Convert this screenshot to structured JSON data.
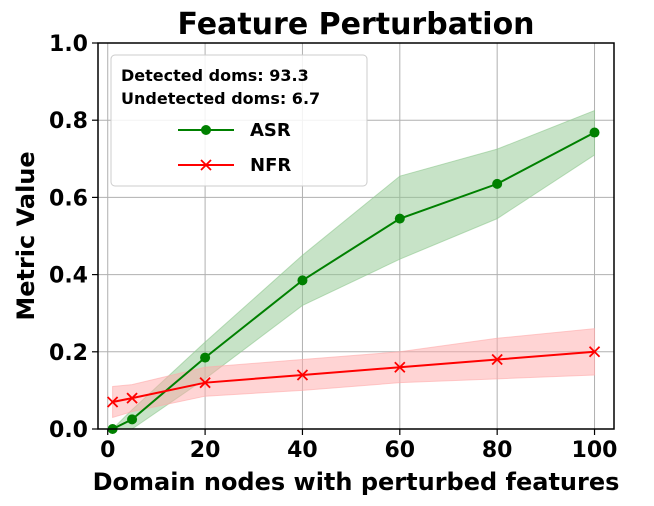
{
  "chart_data": {
    "type": "line",
    "title": "Feature Perturbation",
    "xlabel": "Domain nodes with perturbed features",
    "ylabel": "Metric Value",
    "xlim": [
      -2,
      104
    ],
    "ylim": [
      0,
      1.0
    ],
    "xticks": [
      0,
      20,
      40,
      60,
      80,
      100
    ],
    "yticks": [
      0.0,
      0.2,
      0.4,
      0.6,
      0.8,
      1.0
    ],
    "ytick_labels": [
      "0.0",
      "0.2",
      "0.4",
      "0.6",
      "0.8",
      "1.0"
    ],
    "grid": true,
    "legend": {
      "placement": "top-left",
      "notes": [
        "Detected doms: 93.3",
        "Undetected doms: 6.7"
      ]
    },
    "x": [
      1,
      5,
      20,
      40,
      60,
      80,
      100
    ],
    "series": [
      {
        "name": "ASR",
        "color": "#008000",
        "marker": "circle",
        "values": [
          0.0,
          0.025,
          0.185,
          0.385,
          0.545,
          0.635,
          0.768
        ],
        "band_lower": [
          0.0,
          0.0,
          0.13,
          0.32,
          0.44,
          0.545,
          0.71
        ],
        "band_upper": [
          0.0,
          0.05,
          0.225,
          0.45,
          0.655,
          0.725,
          0.825
        ],
        "band_color": "#90c890"
      },
      {
        "name": "NFR",
        "color": "#ff0000",
        "marker": "x",
        "values": [
          0.07,
          0.08,
          0.12,
          0.14,
          0.16,
          0.18,
          0.2
        ],
        "band_lower": [
          0.03,
          0.045,
          0.085,
          0.1,
          0.12,
          0.13,
          0.14
        ],
        "band_upper": [
          0.11,
          0.115,
          0.16,
          0.18,
          0.2,
          0.235,
          0.26
        ],
        "band_color": "#ffaaaa"
      }
    ]
  }
}
